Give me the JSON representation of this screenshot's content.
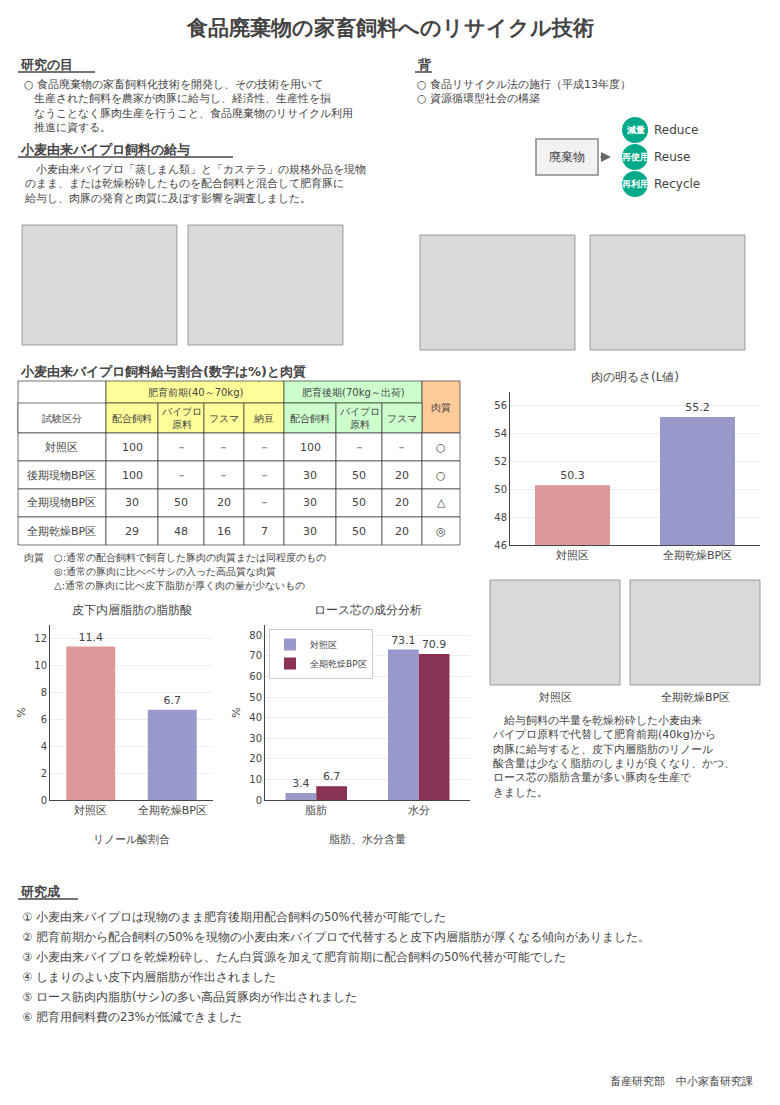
{
  "title": "食品廃棄物の家畜飼料へのリサイクル技術",
  "sections": [
    {
      "title": "研究の目",
      "text": "○ 食品廃棄物の家畜飼料化技術を開発し、その技術を用いて\n   生産された飼料を農家が肉豚に給与し、経済性、生産性を損\n   なうことなく豚肉生産を行うこと、食品廃棄物のリサイクル利用\n   推進に資する。"
    },
    {
      "title": "背",
      "text": "○ 食品リサイクル法の施行（平成13年度）\n○ 資源循環型社会の構築"
    },
    {
      "title": "小麦由来バイプロ飼料の給与",
      "text": "　小麦由来バイプロ「蒸しまん類」と「カステラ」の規格外品を現物\nのまま、または乾燥粉砕したものを配合飼料と混合して肥育豚に\n給与し、肉豚の発育と肉質に及ぼす影響を調査しました。"
    },
    {
      "title": "研究成",
      "items": [
        "① 小麦由来バイプロは現物のまま肥育後期用配合飼料の50%代替が可能でした",
        "② 肥育前期から配合飼料の50%を現物の小麦由来バイプロで代替すると皮下内層脂肪が厚くなる傾向がありました。",
        "③ 小麦由来バイプロを乾燥粉砕し、たん白質源を加えて肥育前期に配合飼料の50%代替が可能でした",
        "④ しまりのよい皮下内層脂肪が作出されました",
        "⑤ ロース筋肉内脂肪(サシ)の多い高品質豚肉が作出されました",
        "⑥ 肥育用飼料費の23%が低減できました"
      ]
    }
  ],
  "diagram": {
    "source": "廃棄物",
    "labels": [
      "減量",
      "再使用",
      "再利用"
    ],
    "annotations": [
      "Reduce",
      "Reuse",
      "Recycle"
    ],
    "color": "#00AA88"
  },
  "table": {
    "title": "小麦由来バイプロ飼料給与割合(数字は%)と肉質",
    "groups": [
      {
        "text": "肥育前期(40～70kg)",
        "color": "#FFFF99"
      },
      {
        "text": "肥育後期(70kg～出荷)",
        "color": "#CCFFCC"
      },
      {
        "text": "肉質",
        "color": "#FFCC99"
      }
    ],
    "columns": [
      "試験区分",
      "配合飼料",
      "バイプロ\n原料",
      "フスマ",
      "納豆",
      "配合飼料",
      "バイプロ\n原料",
      "フスマ"
    ],
    "rows": [
      [
        "対照区",
        "100",
        "－",
        "－",
        "－",
        "100",
        "－",
        "－",
        "○"
      ],
      [
        "後期現物BP区",
        "100",
        "－",
        "－",
        "－",
        "30",
        "50",
        "20",
        "○"
      ],
      [
        "全期現物BP区",
        "30",
        "50",
        "20",
        "－",
        "30",
        "50",
        "20",
        "△"
      ],
      [
        "全期乾燥BP区",
        "29",
        "48",
        "16",
        "7",
        "30",
        "50",
        "20",
        "◎"
      ]
    ],
    "notes": [
      "肉質　○:通常の配合飼料で飼育した豚肉の肉質または同程度のもの",
      "　　　◎:通常の豚肉に比べベサシの入った高品質な肉質",
      "　　　△:通常の豚肉に比べ皮下脂肪が厚く肉の量が少ないもの"
    ]
  },
  "photo_captions": [
    "対照区",
    "全期乾燥BP区"
  ],
  "side_text": "　給与飼料の半量を乾燥粉砕した小麦由来\nバイプロ原料で代替して肥育前期(40kg)から\n肉豚に給与すると、皮下内層脂肪のリノール\n酸含量は少なく脂肪のしまりが良くなり、かつ、\nロース芯の脂肪含量が多い豚肉を生産で\nきました。",
  "footer": "畜産研究部　中小家畜研究課",
  "chart_data": [
    {
      "type": "bar",
      "title": "肉の明るさ(L値)",
      "categories": [
        "対照区",
        "全期乾燥BP区"
      ],
      "values": [
        50.3,
        55.2
      ],
      "colors": [
        "#DD9999",
        "#9999CC"
      ],
      "ylim": [
        46,
        57
      ],
      "yticks": [
        46,
        48,
        50,
        52,
        54,
        56
      ],
      "grid": true,
      "data_labels": true
    },
    {
      "type": "bar",
      "title": "皮下内層脂肪の脂肪酸",
      "xlabel": "リノール酸割合",
      "ylabel": "%",
      "categories": [
        "対照区",
        "全期乾燥BP区"
      ],
      "values": [
        11.4,
        6.7
      ],
      "colors": [
        "#DD9999",
        "#9999CC"
      ],
      "ylim": [
        0,
        13
      ],
      "yticks": [
        0,
        2,
        4,
        6,
        8,
        10,
        12
      ],
      "grid": true,
      "data_labels": true
    },
    {
      "type": "bar",
      "title": "ロース芯の成分分析",
      "xlabel": "脂肪、水分含量",
      "ylabel": "%",
      "categories": [
        "脂肪",
        "水分"
      ],
      "series": [
        {
          "name": "対照区",
          "color": "#9999CC",
          "values": [
            3.4,
            73.1
          ]
        },
        {
          "name": "全期乾燥BP区",
          "color": "#883355",
          "values": [
            6.7,
            70.9
          ]
        }
      ],
      "ylim": [
        0,
        85
      ],
      "yticks": [
        0,
        10,
        20,
        30,
        40,
        50,
        60,
        70,
        80
      ],
      "grid": true,
      "legend": "upper left",
      "data_labels": true
    }
  ]
}
